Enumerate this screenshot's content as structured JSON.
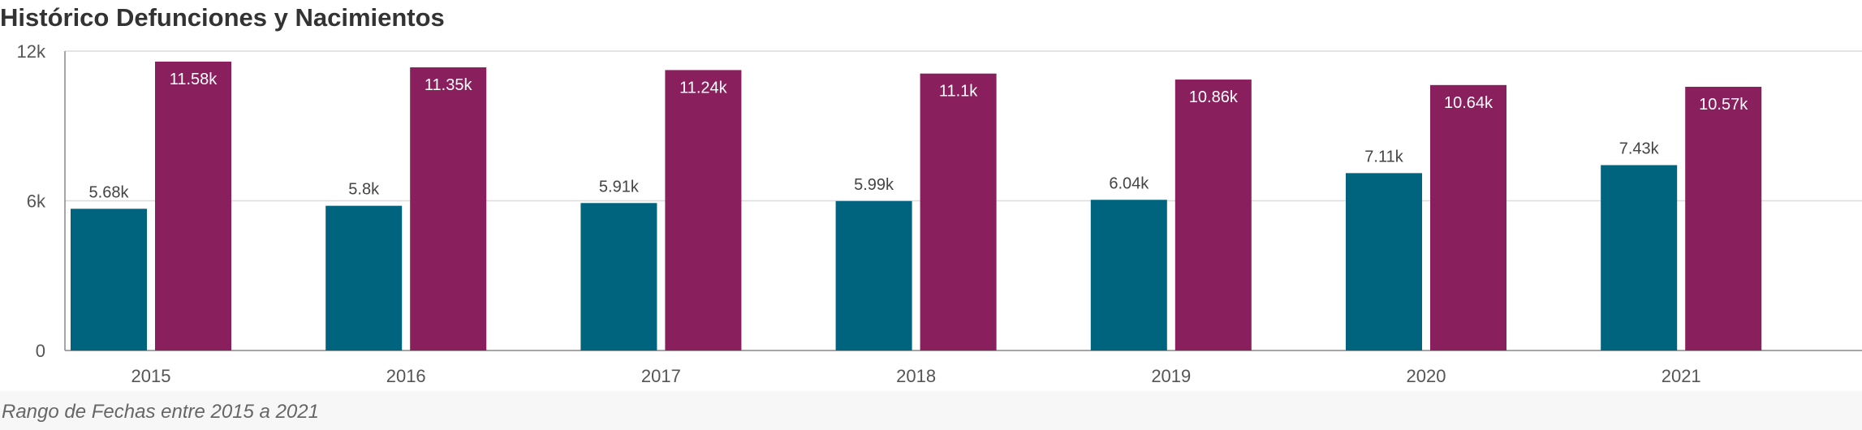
{
  "title": "Histórico Defunciones y Nacimientos",
  "footer": "Rango de Fechas entre 2015 a 2021",
  "colors": {
    "defunciones": "#00647f",
    "nacimientos": "#891f5c",
    "grid": "#dcdcdc",
    "axis": "#555555"
  },
  "chart_data": {
    "type": "bar",
    "title": "Histórico Defunciones y Nacimientos",
    "xlabel": "",
    "ylabel": "",
    "ylim": [
      0,
      12000
    ],
    "yticks": [
      0,
      6000,
      12000
    ],
    "ytick_labels": [
      "0",
      "6k",
      "12k"
    ],
    "grid": true,
    "categories": [
      "2015",
      "2016",
      "2017",
      "2018",
      "2019",
      "2020",
      "2021"
    ],
    "series": [
      {
        "values": [
          5680,
          5800,
          5910,
          5990,
          6040,
          7110,
          7430
        ],
        "labels": [
          "5.68k",
          "5.8k",
          "5.91k",
          "5.99k",
          "6.04k",
          "7.11k",
          "7.43k"
        ],
        "color": "#00647f",
        "label_position": "above"
      },
      {
        "values": [
          11580,
          11350,
          11240,
          11100,
          10860,
          10640,
          10570
        ],
        "labels": [
          "11.58k",
          "11.35k",
          "11.24k",
          "11.1k",
          "10.86k",
          "10.64k",
          "10.57k"
        ],
        "color": "#891f5c",
        "label_position": "inside"
      }
    ]
  }
}
